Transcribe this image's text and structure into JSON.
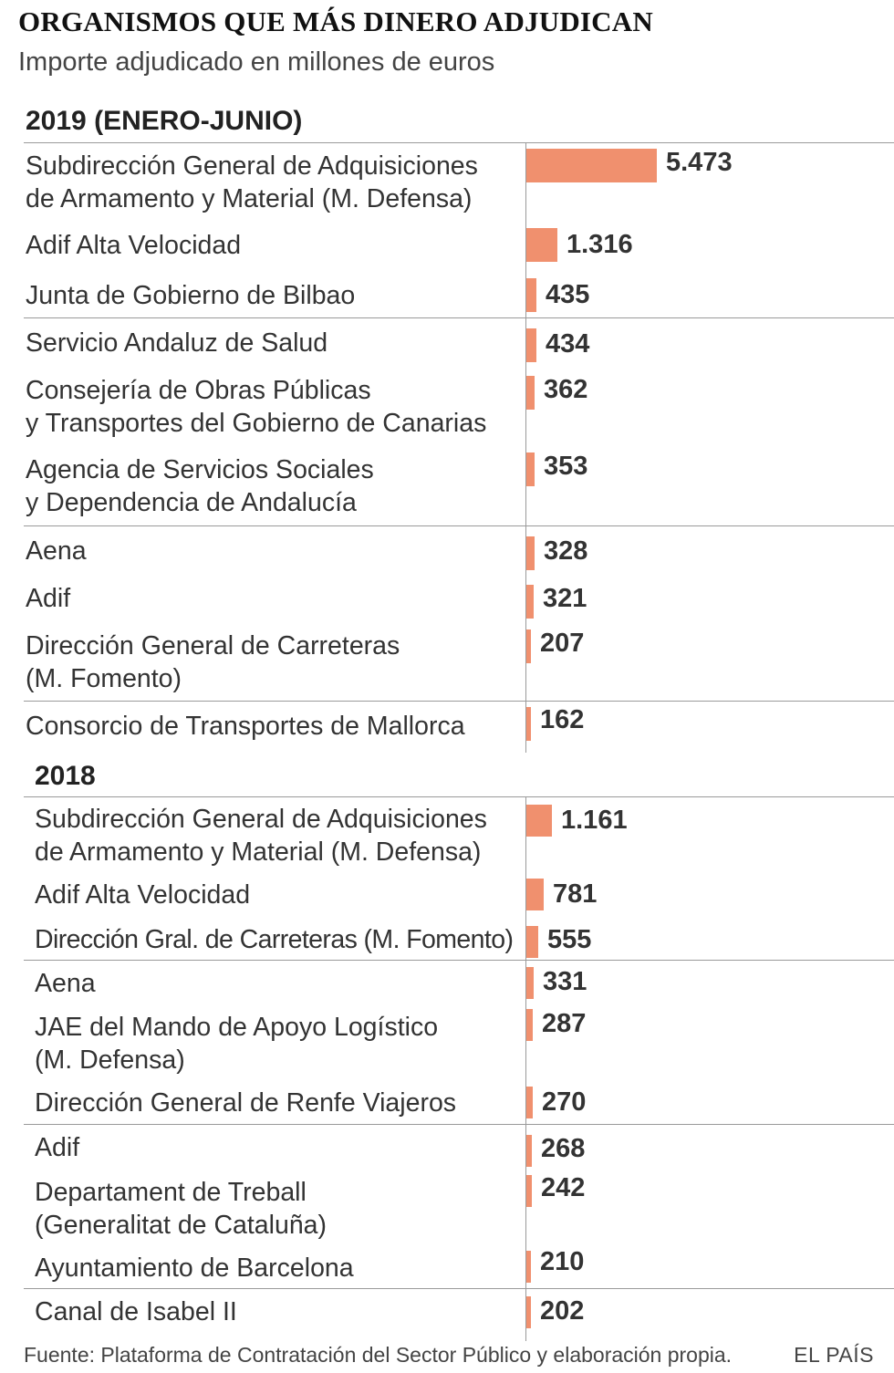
{
  "title": "ORGANISMOS QUE MÁS DINERO ADJUDICAN",
  "subtitle": "Importe adjudicado en millones de euros",
  "source": "Fuente: Plataforma de Contratación del Sector Público y elaboración propia.",
  "brand": "EL PAÍS",
  "colors": {
    "bar": "#f0906e",
    "rule": "#9a9a9a",
    "text": "#333333"
  },
  "chart_data": [
    {
      "type": "bar",
      "orientation": "horizontal",
      "title": "2019 (ENERO-JUNIO)",
      "unit": "millones de euros",
      "categories": [
        "Subdirección General de Adquisiciones de Armamento y Material (M. Defensa)",
        "Adif Alta Velocidad",
        "Junta de Gobierno de Bilbao",
        "Servicio Andaluz de Salud",
        "Consejería de Obras Públicas y Transportes del Gobierno de Canarias",
        "Agencia de Servicios Sociales y Dependencia de Andalucía",
        "Aena",
        "Adif",
        "Dirección General de Carreteras (M. Fomento)",
        "Consorcio de Transportes de Mallorca"
      ],
      "label_lines": [
        [
          "Subdirección General de Adquisiciones",
          "de Armamento y Material (M. Defensa)"
        ],
        [
          "Adif Alta Velocidad"
        ],
        [
          "Junta de Gobierno de Bilbao"
        ],
        [
          "Servicio Andaluz de Salud"
        ],
        [
          "Consejería de Obras Públicas",
          "y Transportes del Gobierno de Canarias"
        ],
        [
          "Agencia de Servicios Sociales",
          "y Dependencia de Andalucía"
        ],
        [
          "Aena"
        ],
        [
          "Adif"
        ],
        [
          "Dirección General de Carreteras",
          "(M. Fomento)"
        ],
        [
          "Consorcio de Transportes de Mallorca"
        ]
      ],
      "values": [
        5473,
        1316,
        435,
        434,
        362,
        353,
        328,
        321,
        207,
        162
      ],
      "value_labels": [
        "5.473",
        "1.316",
        "435",
        "434",
        "362",
        "353",
        "328",
        "321",
        "207",
        "162"
      ]
    },
    {
      "type": "bar",
      "orientation": "horizontal",
      "title": "2018",
      "unit": "millones de euros",
      "categories": [
        "Subdirección General de Adquisiciones de Armamento y Material (M. Defensa)",
        "Adif Alta Velocidad",
        "Dirección Gral. de Carreteras (M. Fomento)",
        "Aena",
        "JAE del Mando de Apoyo Logístico (M. Defensa)",
        "Dirección General de Renfe Viajeros",
        "Adif",
        "Departament de Treball (Generalitat de Cataluña)",
        "Ayuntamiento de Barcelona",
        "Canal de Isabel II"
      ],
      "label_lines": [
        [
          "Subdirección General de Adquisiciones",
          "de Armamento y Material (M. Defensa)"
        ],
        [
          "Adif Alta Velocidad"
        ],
        [
          "Dirección Gral. de Carreteras (M. Fomento)"
        ],
        [
          "Aena"
        ],
        [
          "JAE del Mando de Apoyo Logístico",
          "(M. Defensa)"
        ],
        [
          "Dirección General de Renfe Viajeros"
        ],
        [
          "Adif"
        ],
        [
          "Departament de Treball",
          "(Generalitat de Cataluña)"
        ],
        [
          "Ayuntamiento de Barcelona"
        ],
        [
          "Canal de Isabel II"
        ]
      ],
      "values": [
        1161,
        781,
        555,
        331,
        287,
        270,
        268,
        242,
        210,
        202
      ],
      "value_labels": [
        "1.161",
        "781",
        "555",
        "331",
        "287",
        "270",
        "268",
        "242",
        "210",
        "202"
      ]
    }
  ]
}
